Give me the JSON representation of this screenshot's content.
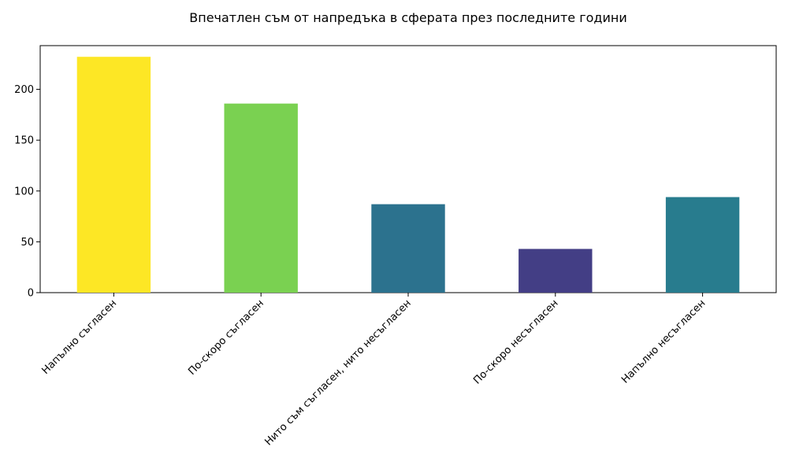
{
  "chart_data": {
    "type": "bar",
    "title": "Впечатлен съм от напредъка в сферата през последните години",
    "xlabel": "",
    "ylabel": "",
    "categories": [
      "Напълно съгласен",
      "По-скоро съгласен",
      "Нито съм съгласен, нито несъгласен",
      "По-скоро несъгласен",
      "Напълно несъгласен"
    ],
    "values": [
      232,
      186,
      87,
      43,
      94
    ],
    "colors": [
      "#fde725",
      "#7ad151",
      "#2c728e",
      "#433e85",
      "#287c8e"
    ],
    "ylim": [
      0,
      243
    ],
    "yticks": [
      0,
      50,
      100,
      150,
      200
    ],
    "grid": false,
    "legend": "none"
  }
}
